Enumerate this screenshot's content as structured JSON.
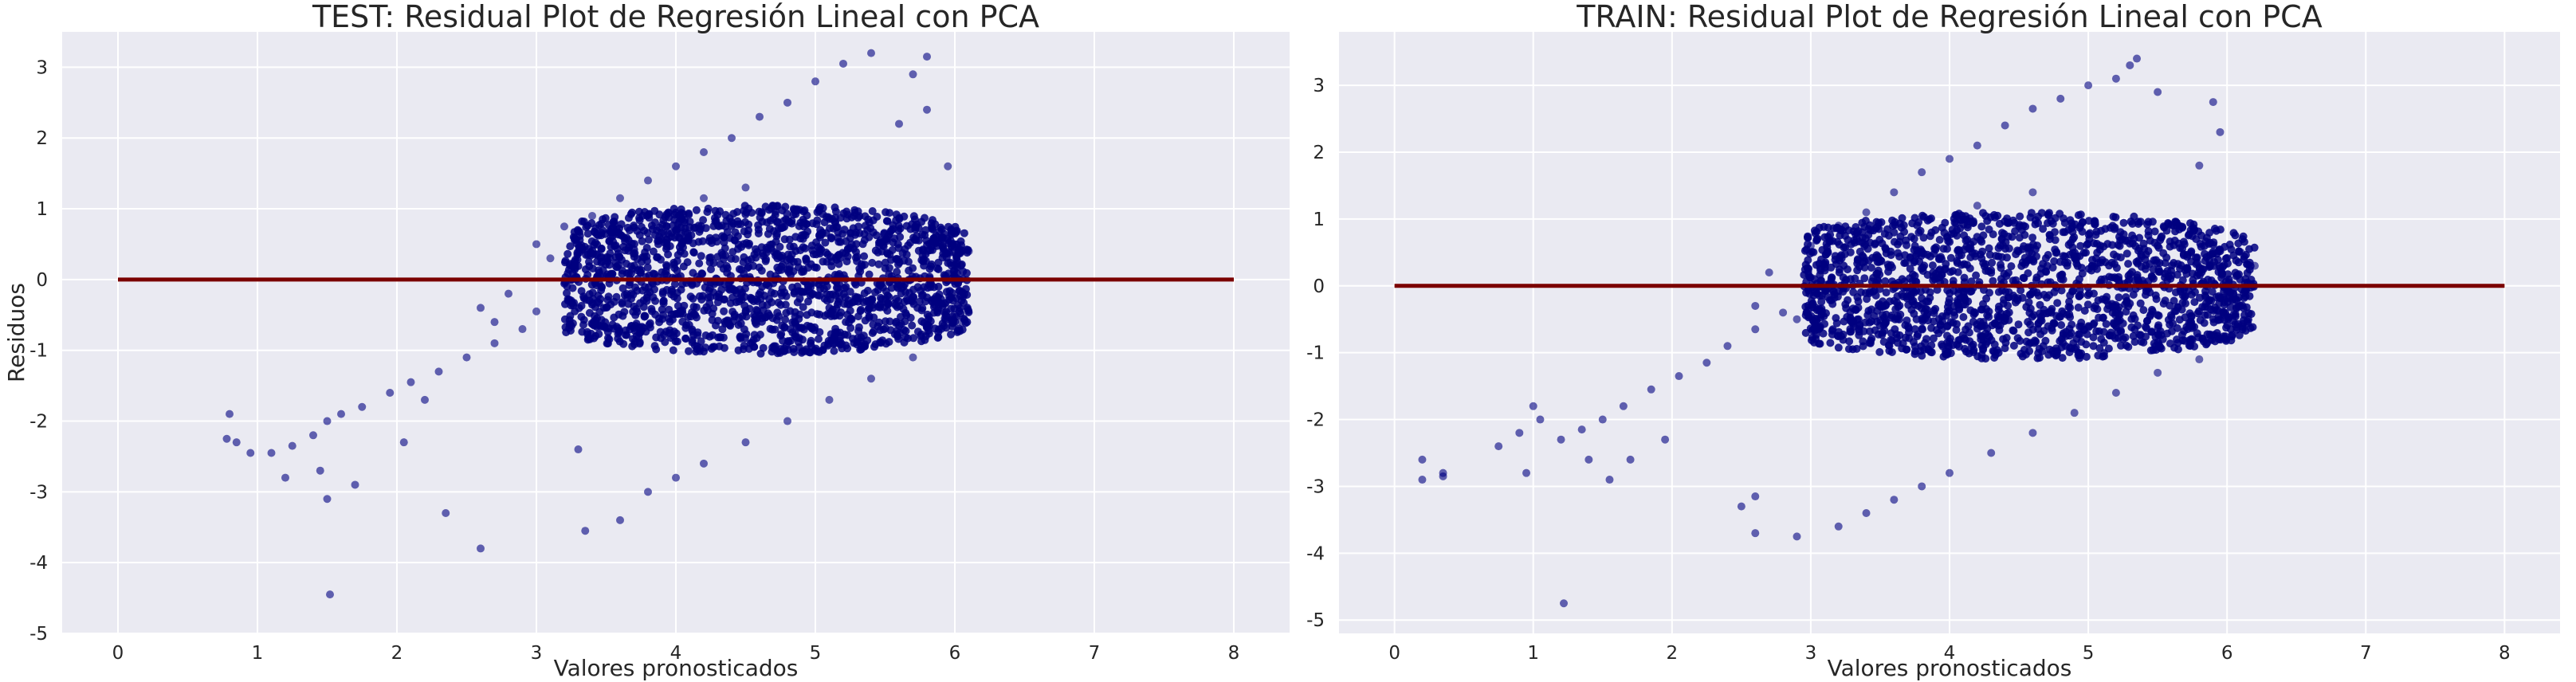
{
  "chart_data": [
    {
      "type": "scatter",
      "title": "TEST: Residual Plot de Regresión Lineal con PCA",
      "xlabel": "Valores pronosticados",
      "ylabel": "Residuos",
      "xlim": [
        -0.4,
        8.4
      ],
      "ylim": [
        -5.0,
        3.5
      ],
      "xticks": [
        0,
        1,
        2,
        3,
        4,
        5,
        6,
        7,
        8
      ],
      "yticks": [
        -5,
        -4,
        -3,
        -2,
        -1,
        0,
        1,
        2,
        3
      ],
      "grid": true,
      "point_color": "#000080",
      "hline": {
        "y": 0,
        "x_range": [
          0,
          8
        ],
        "color": "#7B0000"
      },
      "series": [
        {
          "cluster": {
            "x_range": [
              3.2,
              6.1
            ],
            "center": [
              4.6,
              0.0
            ],
            "half_height": 1.05
          },
          "points": [
            [
              0.78,
              -2.25
            ],
            [
              0.85,
              -2.3
            ],
            [
              0.95,
              -2.45
            ],
            [
              1.1,
              -2.45
            ],
            [
              1.25,
              -2.35
            ],
            [
              1.4,
              -2.2
            ],
            [
              1.5,
              -2.0
            ],
            [
              1.6,
              -1.9
            ],
            [
              1.75,
              -1.8
            ],
            [
              1.95,
              -1.6
            ],
            [
              2.1,
              -1.45
            ],
            [
              2.3,
              -1.3
            ],
            [
              2.5,
              -1.1
            ],
            [
              2.7,
              -0.9
            ],
            [
              2.9,
              -0.7
            ],
            [
              1.2,
              -2.8
            ],
            [
              1.5,
              -3.1
            ],
            [
              1.45,
              -2.7
            ],
            [
              1.7,
              -2.9
            ],
            [
              2.05,
              -2.3
            ],
            [
              2.35,
              -3.3
            ],
            [
              2.6,
              -3.8
            ],
            [
              1.52,
              -4.45
            ],
            [
              0.8,
              -1.9
            ],
            [
              2.2,
              -1.7
            ],
            [
              3.3,
              -2.4
            ],
            [
              3.35,
              -3.55
            ],
            [
              3.6,
              -3.4
            ],
            [
              3.8,
              -3.0
            ],
            [
              4.0,
              -2.8
            ],
            [
              4.2,
              -2.6
            ],
            [
              4.5,
              -2.3
            ],
            [
              4.8,
              -2.0
            ],
            [
              5.1,
              -1.7
            ],
            [
              5.4,
              -1.4
            ],
            [
              5.7,
              -1.1
            ],
            [
              6.0,
              -0.5
            ],
            [
              6.05,
              -0.6
            ],
            [
              6.1,
              0.4
            ],
            [
              6.0,
              0.5
            ],
            [
              3.0,
              0.5
            ],
            [
              3.2,
              0.75
            ],
            [
              3.4,
              0.9
            ],
            [
              3.6,
              1.15
            ],
            [
              3.8,
              1.4
            ],
            [
              4.0,
              1.6
            ],
            [
              4.2,
              1.8
            ],
            [
              4.4,
              2.0
            ],
            [
              4.6,
              2.3
            ],
            [
              4.8,
              2.5
            ],
            [
              5.0,
              2.8
            ],
            [
              5.2,
              3.05
            ],
            [
              5.4,
              3.2
            ],
            [
              5.8,
              3.15
            ],
            [
              5.7,
              2.9
            ],
            [
              5.8,
              2.4
            ],
            [
              5.6,
              2.2
            ],
            [
              5.95,
              1.6
            ],
            [
              4.2,
              1.15
            ],
            [
              4.5,
              1.3
            ],
            [
              3.1,
              0.3
            ],
            [
              2.8,
              -0.2
            ],
            [
              3.0,
              -0.45
            ],
            [
              2.6,
              -0.4
            ],
            [
              2.7,
              -0.6
            ]
          ]
        }
      ]
    },
    {
      "type": "scatter",
      "title": "TRAIN: Residual Plot de Regresión Lineal con PCA",
      "xlabel": "Valores pronosticados",
      "ylabel": "",
      "xlim": [
        -0.4,
        8.4
      ],
      "ylim": [
        -5.2,
        3.8
      ],
      "xticks": [
        0,
        1,
        2,
        3,
        4,
        5,
        6,
        7,
        8
      ],
      "yticks": [
        -5,
        -4,
        -3,
        -2,
        -1,
        0,
        1,
        2,
        3
      ],
      "grid": true,
      "point_color": "#000080",
      "hline": {
        "y": 0,
        "x_range": [
          0,
          8
        ],
        "color": "#7B0000"
      },
      "series": [
        {
          "cluster": {
            "x_range": [
              2.95,
              6.2
            ],
            "center": [
              4.5,
              0.0
            ],
            "half_height": 1.1
          },
          "points": [
            [
              0.2,
              -2.6
            ],
            [
              0.2,
              -2.9
            ],
            [
              0.35,
              -2.8
            ],
            [
              0.35,
              -2.85
            ],
            [
              0.75,
              -2.4
            ],
            [
              0.9,
              -2.2
            ],
            [
              1.0,
              -1.8
            ],
            [
              1.05,
              -2.0
            ],
            [
              0.95,
              -2.8
            ],
            [
              1.2,
              -2.3
            ],
            [
              1.35,
              -2.15
            ],
            [
              1.5,
              -2.0
            ],
            [
              1.65,
              -1.8
            ],
            [
              1.85,
              -1.55
            ],
            [
              2.05,
              -1.35
            ],
            [
              2.25,
              -1.15
            ],
            [
              2.4,
              -0.9
            ],
            [
              2.6,
              -0.65
            ],
            [
              2.8,
              -0.4
            ],
            [
              1.4,
              -2.6
            ],
            [
              1.55,
              -2.9
            ],
            [
              1.7,
              -2.6
            ],
            [
              1.95,
              -2.3
            ],
            [
              2.5,
              -3.3
            ],
            [
              2.6,
              -3.15
            ],
            [
              2.6,
              -3.7
            ],
            [
              2.9,
              -3.75
            ],
            [
              1.22,
              -4.75
            ],
            [
              3.2,
              -3.6
            ],
            [
              3.4,
              -3.4
            ],
            [
              3.6,
              -3.2
            ],
            [
              3.8,
              -3.0
            ],
            [
              4.0,
              -2.8
            ],
            [
              4.3,
              -2.5
            ],
            [
              4.6,
              -2.2
            ],
            [
              4.9,
              -1.9
            ],
            [
              5.2,
              -1.6
            ],
            [
              5.5,
              -1.3
            ],
            [
              5.8,
              -1.1
            ],
            [
              6.1,
              -0.6
            ],
            [
              6.2,
              0.3
            ],
            [
              6.1,
              0.5
            ],
            [
              3.0,
              0.6
            ],
            [
              3.2,
              0.9
            ],
            [
              3.4,
              1.1
            ],
            [
              3.6,
              1.4
            ],
            [
              3.8,
              1.7
            ],
            [
              4.0,
              1.9
            ],
            [
              4.2,
              2.1
            ],
            [
              4.4,
              2.4
            ],
            [
              4.6,
              2.65
            ],
            [
              4.8,
              2.8
            ],
            [
              5.0,
              3.0
            ],
            [
              5.2,
              3.1
            ],
            [
              5.3,
              3.3
            ],
            [
              5.35,
              3.4
            ],
            [
              5.5,
              2.9
            ],
            [
              5.9,
              2.75
            ],
            [
              5.95,
              2.3
            ],
            [
              5.8,
              1.8
            ],
            [
              2.7,
              0.2
            ],
            [
              2.6,
              -0.3
            ],
            [
              2.9,
              -0.5
            ],
            [
              4.2,
              1.2
            ],
            [
              4.6,
              1.4
            ]
          ]
        }
      ]
    }
  ]
}
